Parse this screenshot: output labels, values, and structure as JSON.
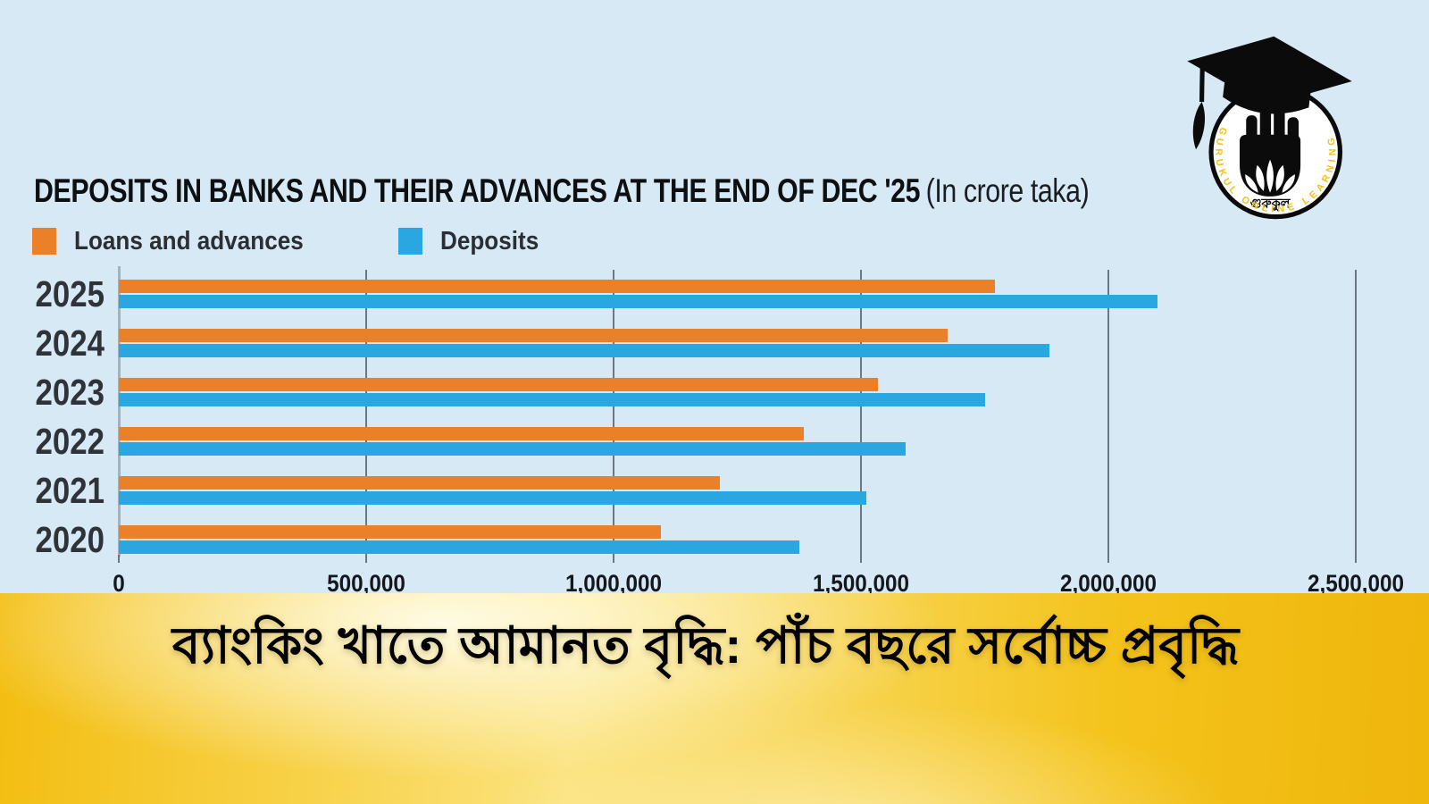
{
  "page": {
    "background": "#D7E9F5"
  },
  "chart": {
    "title": "DEPOSITS IN BANKS AND THEIR ADVANCES AT THE END OF DEC '25",
    "title_note": "(In crore taka)",
    "legend": [
      {
        "label": "Loans and advances",
        "color": "#EA8128"
      },
      {
        "label": "Deposits",
        "color": "#2AA7E1"
      }
    ]
  },
  "chart_data": {
    "type": "bar",
    "orientation": "horizontal",
    "title": "DEPOSITS IN BANKS AND THEIR ADVANCES AT THE END OF DEC '25",
    "subtitle": "(In crore taka)",
    "categories": [
      "2025",
      "2024",
      "2023",
      "2022",
      "2021",
      "2020"
    ],
    "series": [
      {
        "name": "Loans and advances",
        "color": "#EA8128",
        "values": [
          1770000,
          1675000,
          1535000,
          1385000,
          1215000,
          1095000
        ]
      },
      {
        "name": "Deposits",
        "color": "#2AA7E1",
        "values": [
          2100000,
          1880000,
          1750000,
          1590000,
          1510000,
          1375000
        ]
      }
    ],
    "xlabel": "",
    "ylabel": "",
    "xlim": [
      0,
      2500000
    ],
    "x_ticks": [
      0,
      500000,
      1000000,
      1500000,
      2000000,
      2500000
    ],
    "x_tick_labels": [
      "0",
      "500,000",
      "1,000,000",
      "1,500,000",
      "2,000,000",
      "2,500,000"
    ],
    "grid": "vertical",
    "legend_position": "top-left"
  },
  "logo": {
    "ring_text": "GURUKUL ONLINE LEARNING",
    "center_text": "গুরুকুল",
    "accent_color": "#F2C11B"
  },
  "banner": {
    "headline": "ব্যাংকিং খাতে আমানত বৃদ্ধি: পাঁচ বছরে সর্বোচ্চ প্রবৃদ্ধি",
    "background": "#F6C81F",
    "text_color": "#000000"
  }
}
